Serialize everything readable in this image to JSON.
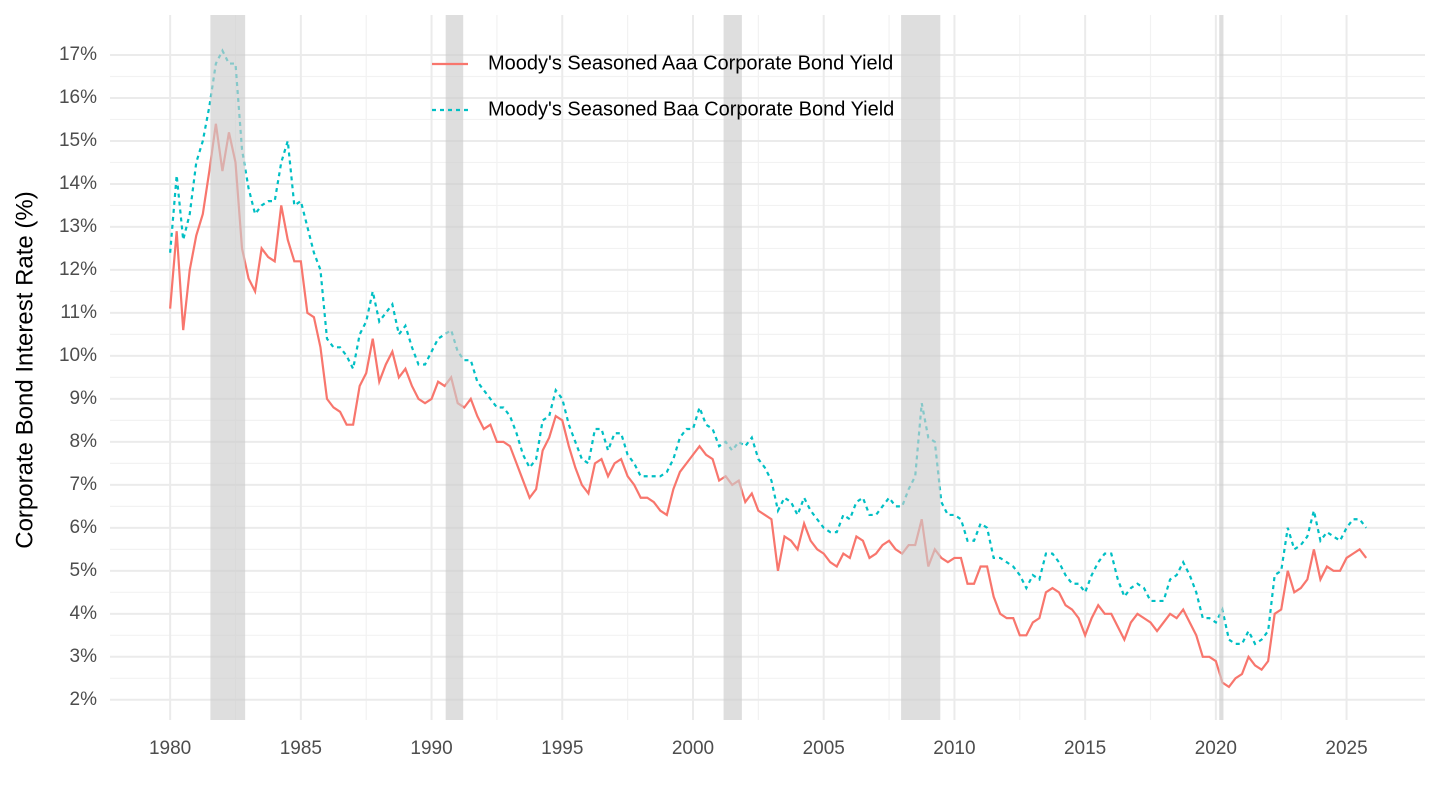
{
  "chart_data": {
    "type": "line",
    "y_label": "Corporate Bond Interest Rate (%)",
    "legend_position": "top",
    "grid": true,
    "x": [
      1980,
      1980.25,
      1980.5,
      1980.75,
      1981,
      1981.25,
      1981.5,
      1981.75,
      1982,
      1982.25,
      1982.5,
      1982.75,
      1983,
      1983.25,
      1983.5,
      1983.75,
      1984,
      1984.25,
      1984.5,
      1984.75,
      1985,
      1985.25,
      1985.5,
      1985.75,
      1986,
      1986.25,
      1986.5,
      1986.75,
      1987,
      1987.25,
      1987.5,
      1987.75,
      1988,
      1988.25,
      1988.5,
      1988.75,
      1989,
      1989.25,
      1989.5,
      1989.75,
      1990,
      1990.25,
      1990.5,
      1990.75,
      1991,
      1991.25,
      1991.5,
      1991.75,
      1992,
      1992.25,
      1992.5,
      1992.75,
      1993,
      1993.25,
      1993.5,
      1993.75,
      1994,
      1994.25,
      1994.5,
      1994.75,
      1995,
      1995.25,
      1995.5,
      1995.75,
      1996,
      1996.25,
      1996.5,
      1996.75,
      1997,
      1997.25,
      1997.5,
      1997.75,
      1998,
      1998.25,
      1998.5,
      1998.75,
      1999,
      1999.25,
      1999.5,
      1999.75,
      2000,
      2000.25,
      2000.5,
      2000.75,
      2001,
      2001.25,
      2001.5,
      2001.75,
      2002,
      2002.25,
      2002.5,
      2002.75,
      2003,
      2003.25,
      2003.5,
      2003.75,
      2004,
      2004.25,
      2004.5,
      2004.75,
      2005,
      2005.25,
      2005.5,
      2005.75,
      2006,
      2006.25,
      2006.5,
      2006.75,
      2007,
      2007.25,
      2007.5,
      2007.75,
      2008,
      2008.25,
      2008.5,
      2008.75,
      2009,
      2009.25,
      2009.5,
      2009.75,
      2010,
      2010.25,
      2010.5,
      2010.75,
      2011,
      2011.25,
      2011.5,
      2011.75,
      2012,
      2012.25,
      2012.5,
      2012.75,
      2013,
      2013.25,
      2013.5,
      2013.75,
      2014,
      2014.25,
      2014.5,
      2014.75,
      2015,
      2015.25,
      2015.5,
      2015.75,
      2016,
      2016.25,
      2016.5,
      2016.75,
      2017,
      2017.25,
      2017.5,
      2017.75,
      2018,
      2018.25,
      2018.5,
      2018.75,
      2019,
      2019.25,
      2019.5,
      2019.75,
      2020,
      2020.25,
      2020.5,
      2020.75,
      2021,
      2021.25,
      2021.5,
      2021.75,
      2022,
      2022.25,
      2022.5,
      2022.75,
      2023,
      2023.25,
      2023.5,
      2023.75,
      2024,
      2024.25,
      2024.5,
      2024.75,
      2025,
      2025.25,
      2025.5,
      2025.75
    ],
    "series": [
      {
        "name": "Moody's Seasoned Aaa Corporate Bond Yield",
        "color": "#F8766D",
        "dash": "solid",
        "values": [
          11.1,
          12.9,
          10.6,
          12.0,
          12.8,
          13.3,
          14.3,
          15.4,
          14.3,
          15.2,
          14.5,
          12.5,
          11.8,
          11.5,
          12.5,
          12.3,
          12.2,
          13.5,
          12.7,
          12.2,
          12.2,
          11.0,
          10.9,
          10.2,
          9.0,
          8.8,
          8.7,
          8.4,
          8.4,
          9.3,
          9.6,
          10.4,
          9.4,
          9.8,
          10.1,
          9.5,
          9.7,
          9.3,
          9.0,
          8.9,
          9.0,
          9.4,
          9.3,
          9.5,
          8.9,
          8.8,
          9.0,
          8.6,
          8.3,
          8.4,
          8.0,
          8.0,
          7.9,
          7.5,
          7.1,
          6.7,
          6.9,
          7.8,
          8.1,
          8.6,
          8.5,
          7.9,
          7.4,
          7.0,
          6.8,
          7.5,
          7.6,
          7.2,
          7.5,
          7.6,
          7.2,
          7.0,
          6.7,
          6.7,
          6.6,
          6.4,
          6.3,
          6.9,
          7.3,
          7.5,
          7.7,
          7.9,
          7.7,
          7.6,
          7.1,
          7.2,
          7.0,
          7.1,
          6.6,
          6.8,
          6.4,
          6.3,
          6.2,
          5.0,
          5.8,
          5.7,
          5.5,
          6.1,
          5.7,
          5.5,
          5.4,
          5.2,
          5.1,
          5.4,
          5.3,
          5.8,
          5.7,
          5.3,
          5.4,
          5.6,
          5.7,
          5.5,
          5.4,
          5.6,
          5.6,
          6.2,
          5.1,
          5.5,
          5.3,
          5.2,
          5.3,
          5.3,
          4.7,
          4.7,
          5.1,
          5.1,
          4.4,
          4.0,
          3.9,
          3.9,
          3.5,
          3.5,
          3.8,
          3.9,
          4.5,
          4.6,
          4.5,
          4.2,
          4.1,
          3.9,
          3.5,
          3.9,
          4.2,
          4.0,
          4.0,
          3.7,
          3.4,
          3.8,
          4.0,
          3.9,
          3.8,
          3.6,
          3.8,
          4.0,
          3.9,
          4.1,
          3.8,
          3.5,
          3.0,
          3.0,
          2.9,
          2.4,
          2.3,
          2.5,
          2.6,
          3.0,
          2.8,
          2.7,
          2.9,
          4.0,
          4.1,
          5.0,
          4.5,
          4.6,
          4.8,
          5.5,
          4.8,
          5.1,
          5.0,
          5.0,
          5.3,
          5.4,
          5.5,
          5.3
        ]
      },
      {
        "name": "Moody's Seasoned Baa Corporate Bond Yield",
        "color": "#00BFC4",
        "dash": "dotted",
        "values": [
          12.4,
          14.2,
          12.7,
          13.3,
          14.5,
          15.0,
          15.8,
          16.8,
          17.1,
          16.8,
          16.8,
          14.8,
          13.9,
          13.3,
          13.5,
          13.6,
          13.6,
          14.5,
          15.0,
          13.5,
          13.6,
          13.0,
          12.4,
          12.0,
          10.4,
          10.2,
          10.2,
          10.0,
          9.7,
          10.5,
          10.8,
          11.5,
          10.8,
          11.0,
          11.2,
          10.5,
          10.7,
          10.2,
          9.8,
          9.8,
          10.1,
          10.4,
          10.5,
          10.6,
          10.1,
          9.9,
          9.9,
          9.4,
          9.2,
          9.0,
          8.8,
          8.8,
          8.6,
          8.2,
          7.7,
          7.4,
          7.6,
          8.5,
          8.6,
          9.2,
          9.0,
          8.4,
          8.0,
          7.6,
          7.5,
          8.3,
          8.3,
          7.8,
          8.2,
          8.2,
          7.7,
          7.5,
          7.2,
          7.2,
          7.2,
          7.2,
          7.3,
          7.6,
          8.1,
          8.3,
          8.3,
          8.8,
          8.4,
          8.3,
          7.9,
          8.0,
          7.8,
          8.0,
          7.9,
          8.1,
          7.6,
          7.4,
          7.1,
          6.4,
          6.7,
          6.6,
          6.3,
          6.7,
          6.4,
          6.2,
          6.0,
          5.9,
          5.9,
          6.3,
          6.2,
          6.6,
          6.7,
          6.3,
          6.3,
          6.5,
          6.7,
          6.5,
          6.5,
          6.9,
          7.2,
          8.9,
          8.1,
          8.0,
          6.6,
          6.3,
          6.3,
          6.2,
          5.7,
          5.7,
          6.1,
          6.0,
          5.3,
          5.3,
          5.2,
          5.1,
          4.9,
          4.6,
          4.9,
          4.8,
          5.4,
          5.4,
          5.2,
          4.9,
          4.7,
          4.7,
          4.5,
          4.9,
          5.2,
          5.4,
          5.4,
          4.8,
          4.4,
          4.6,
          4.7,
          4.6,
          4.3,
          4.3,
          4.3,
          4.8,
          4.9,
          5.2,
          4.9,
          4.5,
          3.9,
          3.9,
          3.8,
          4.1,
          3.4,
          3.3,
          3.3,
          3.6,
          3.3,
          3.4,
          3.6,
          4.9,
          5.0,
          6.0,
          5.5,
          5.6,
          5.8,
          6.4,
          5.7,
          5.9,
          5.8,
          5.7,
          6.0,
          6.2,
          6.2,
          6.0
        ]
      }
    ],
    "recessions": [
      [
        1981.54,
        1982.87
      ],
      [
        1990.54,
        1991.21
      ],
      [
        2001.17,
        2001.87
      ],
      [
        2007.96,
        2009.46
      ],
      [
        2020.13,
        2020.29
      ]
    ],
    "recession_color": "#cccccc",
    "xlim": [
      1977.7,
      2028
    ],
    "xticks": [
      1980,
      1985,
      1990,
      1995,
      2000,
      2005,
      2010,
      2015,
      2020,
      2025
    ],
    "ylim": [
      1.53,
      17.93
    ],
    "yticks": [
      {
        "value": 2,
        "label": "2%"
      },
      {
        "value": 3,
        "label": "3%"
      },
      {
        "value": 4,
        "label": "4%"
      },
      {
        "value": 5,
        "label": "5%"
      },
      {
        "value": 6,
        "label": "6%"
      },
      {
        "value": 7,
        "label": "7%"
      },
      {
        "value": 8,
        "label": "8%"
      },
      {
        "value": 9,
        "label": "9%"
      },
      {
        "value": 10,
        "label": "10%"
      },
      {
        "value": 11,
        "label": "11%"
      },
      {
        "value": 12,
        "label": "12%"
      },
      {
        "value": 13,
        "label": "13%"
      },
      {
        "value": 14,
        "label": "14%"
      },
      {
        "value": 15,
        "label": "15%"
      },
      {
        "value": 16,
        "label": "16%"
      },
      {
        "value": 17,
        "label": "17%"
      }
    ]
  }
}
